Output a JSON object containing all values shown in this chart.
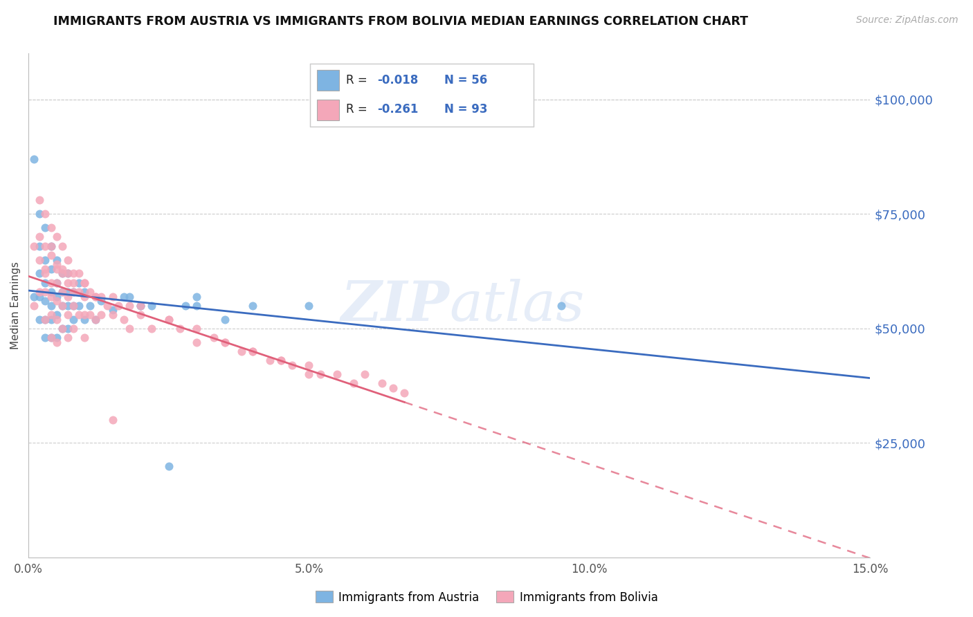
{
  "title": "IMMIGRANTS FROM AUSTRIA VS IMMIGRANTS FROM BOLIVIA MEDIAN EARNINGS CORRELATION CHART",
  "source": "Source: ZipAtlas.com",
  "ylabel": "Median Earnings",
  "xlim": [
    0.0,
    0.15
  ],
  "ylim": [
    0,
    110000
  ],
  "yticks": [
    25000,
    50000,
    75000,
    100000
  ],
  "xticks": [
    0.0,
    0.05,
    0.1,
    0.15
  ],
  "xtick_labels": [
    "0.0%",
    "5.0%",
    "10.0%",
    "15.0%"
  ],
  "austria_color": "#7eb4e2",
  "bolivia_color": "#f4a7b9",
  "trend_austria_color": "#3a6bbf",
  "trend_bolivia_color": "#e0607a",
  "legend_r_austria": "-0.018",
  "legend_n_austria": "56",
  "legend_r_bolivia": "-0.261",
  "legend_n_bolivia": "93",
  "watermark": "ZIPatlas",
  "austria_x": [
    0.001,
    0.001,
    0.002,
    0.002,
    0.002,
    0.002,
    0.002,
    0.003,
    0.003,
    0.003,
    0.003,
    0.003,
    0.003,
    0.004,
    0.004,
    0.004,
    0.004,
    0.004,
    0.004,
    0.005,
    0.005,
    0.005,
    0.005,
    0.005,
    0.006,
    0.006,
    0.006,
    0.006,
    0.007,
    0.007,
    0.007,
    0.007,
    0.008,
    0.008,
    0.008,
    0.009,
    0.009,
    0.01,
    0.01,
    0.011,
    0.012,
    0.013,
    0.015,
    0.017,
    0.02,
    0.022,
    0.025,
    0.03,
    0.035,
    0.04,
    0.018,
    0.02,
    0.028,
    0.03,
    0.05,
    0.095
  ],
  "austria_y": [
    87000,
    57000,
    75000,
    68000,
    62000,
    57000,
    52000,
    72000,
    65000,
    60000,
    56000,
    52000,
    48000,
    68000,
    63000,
    58000,
    55000,
    52000,
    48000,
    65000,
    60000,
    57000,
    53000,
    48000,
    62000,
    58000,
    55000,
    50000,
    62000,
    58000,
    55000,
    50000,
    58000,
    55000,
    52000,
    60000,
    55000,
    58000,
    52000,
    55000,
    52000,
    56000,
    54000,
    57000,
    55000,
    55000,
    20000,
    57000,
    52000,
    55000,
    57000,
    55000,
    55000,
    55000,
    55000,
    55000
  ],
  "bolivia_x": [
    0.001,
    0.001,
    0.002,
    0.002,
    0.002,
    0.002,
    0.003,
    0.003,
    0.003,
    0.003,
    0.003,
    0.004,
    0.004,
    0.004,
    0.004,
    0.004,
    0.004,
    0.005,
    0.005,
    0.005,
    0.005,
    0.005,
    0.005,
    0.006,
    0.006,
    0.006,
    0.006,
    0.006,
    0.007,
    0.007,
    0.007,
    0.007,
    0.007,
    0.008,
    0.008,
    0.008,
    0.008,
    0.009,
    0.009,
    0.009,
    0.01,
    0.01,
    0.01,
    0.01,
    0.011,
    0.011,
    0.012,
    0.012,
    0.013,
    0.013,
    0.014,
    0.015,
    0.016,
    0.017,
    0.018,
    0.02,
    0.022,
    0.025,
    0.027,
    0.03,
    0.033,
    0.035,
    0.038,
    0.04,
    0.043,
    0.045,
    0.047,
    0.05,
    0.052,
    0.055,
    0.058,
    0.06,
    0.063,
    0.065,
    0.067,
    0.003,
    0.004,
    0.005,
    0.006,
    0.007,
    0.008,
    0.01,
    0.012,
    0.015,
    0.018,
    0.02,
    0.025,
    0.03,
    0.035,
    0.04,
    0.045,
    0.05,
    0.015
  ],
  "bolivia_y": [
    68000,
    55000,
    78000,
    70000,
    65000,
    58000,
    75000,
    68000,
    62000,
    58000,
    52000,
    72000,
    66000,
    60000,
    57000,
    53000,
    48000,
    70000,
    64000,
    60000,
    56000,
    52000,
    47000,
    68000,
    63000,
    58000,
    55000,
    50000,
    65000,
    60000,
    57000,
    53000,
    48000,
    62000,
    58000,
    55000,
    50000,
    62000,
    58000,
    53000,
    60000,
    57000,
    53000,
    48000,
    58000,
    53000,
    57000,
    52000,
    57000,
    53000,
    55000,
    53000,
    55000,
    52000,
    50000,
    53000,
    50000,
    52000,
    50000,
    47000,
    48000,
    47000,
    45000,
    45000,
    43000,
    43000,
    42000,
    42000,
    40000,
    40000,
    38000,
    40000,
    38000,
    37000,
    36000,
    63000,
    68000,
    63000,
    62000,
    62000,
    60000,
    60000,
    57000,
    57000,
    55000,
    55000,
    52000,
    50000,
    47000,
    45000,
    43000,
    40000,
    30000
  ]
}
